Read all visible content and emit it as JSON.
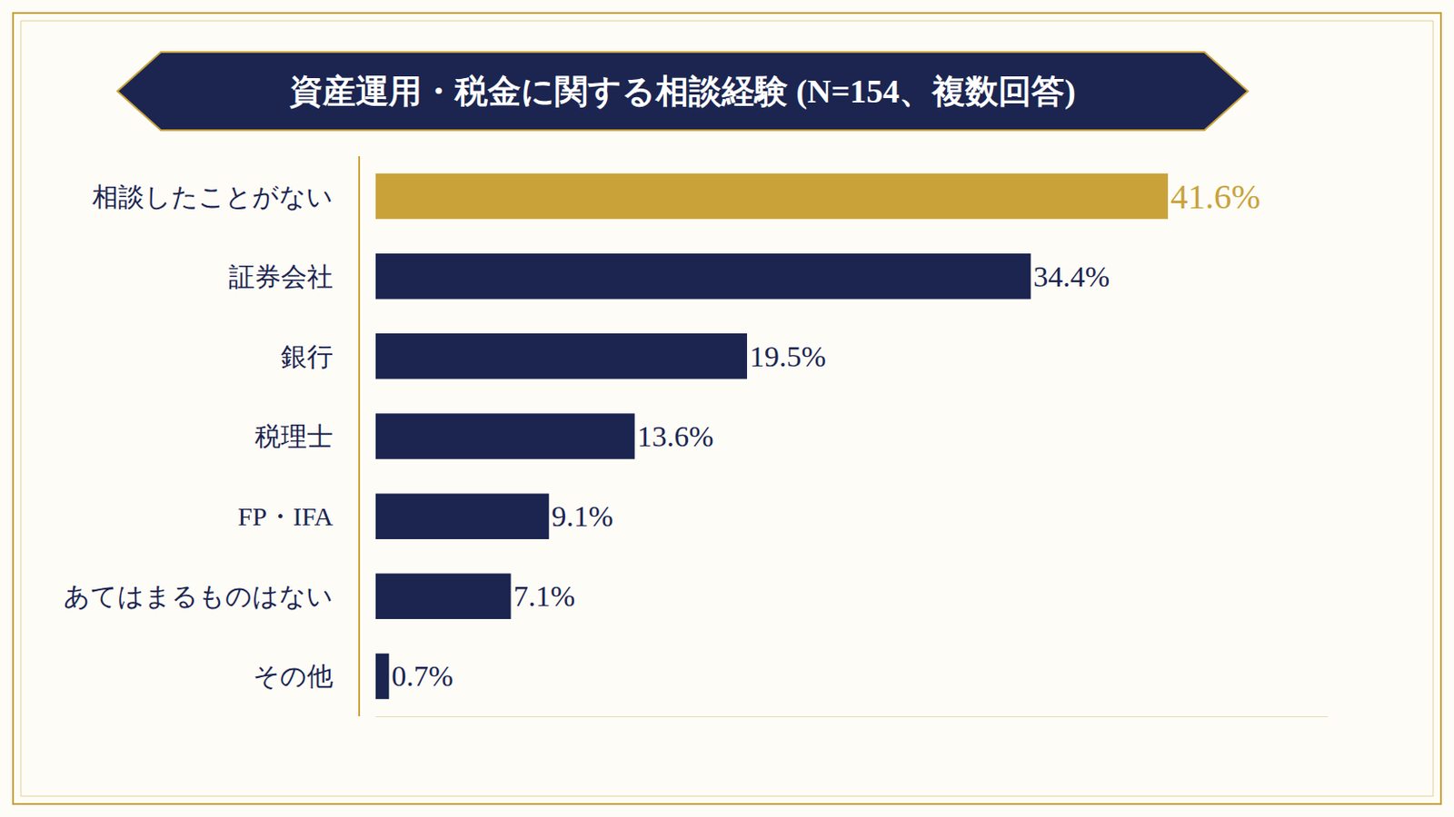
{
  "chart_data": {
    "type": "bar",
    "orientation": "horizontal",
    "title": "資産運用・税金に関する相談経験 (N=154、複数回答)",
    "categories": [
      "相談したことがない",
      "証券会社",
      "銀行",
      "税理士",
      "FP・IFA",
      "あてはまるものはない",
      "その他"
    ],
    "values": [
      41.6,
      34.4,
      19.5,
      13.6,
      9.1,
      7.1,
      0.7
    ],
    "value_labels": [
      "41.6%",
      "34.4%",
      "19.5%",
      "13.6%",
      "9.1%",
      "7.1%",
      "0.7%"
    ],
    "colors": [
      "#c9a23a",
      "#1b2550",
      "#1b2550",
      "#1b2550",
      "#1b2550",
      "#1b2550",
      "#1b2550"
    ],
    "xlim": [
      0,
      50
    ],
    "xticks": [],
    "data_labels": true,
    "tick_labels": "y",
    "grid": false
  }
}
